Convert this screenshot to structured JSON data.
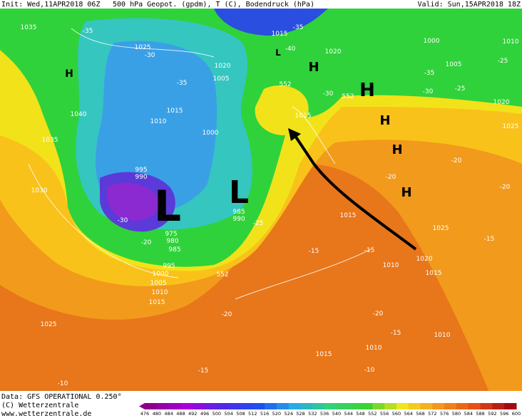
{
  "header": {
    "init": "Init: Wed,11APR2018 06Z",
    "title": "500 hPa Geopot. (gpdm), T (C), Bodendruck (hPa)",
    "valid": "Valid: Sun,15APR2018 18Z"
  },
  "footer": {
    "data": "Data: GFS OPERATIONAL 0.250°",
    "copyright": "(C) Wetterzentrale",
    "url": "www.wetterzentrale.de"
  },
  "colorbar": {
    "labels": [
      476,
      480,
      484,
      488,
      492,
      496,
      500,
      504,
      508,
      512,
      516,
      520,
      524,
      528,
      532,
      536,
      540,
      544,
      548,
      552,
      556,
      560,
      564,
      568,
      572,
      576,
      580,
      584,
      588,
      592,
      596,
      600
    ]
  },
  "map": {
    "highs": [
      "H",
      "H",
      "H",
      "H",
      "H",
      "H"
    ],
    "lows": [
      "L",
      "L",
      "L"
    ],
    "labels": [
      "1035",
      "1025",
      "1020",
      "1005",
      "1015",
      "1010",
      "1000",
      "1040",
      "1035",
      "1030",
      "995",
      "990",
      "985",
      "990",
      "975",
      "980",
      "985",
      "995",
      "1000",
      "1005",
      "1010",
      "1015",
      "1025",
      "1015",
      "1020",
      "1015",
      "1015",
      "1025",
      "1020",
      "1015",
      "1010",
      "1010",
      "1010",
      "1015",
      "1000",
      "1005",
      "1010",
      "1020",
      "1025",
      "-35",
      "-30",
      "-35",
      "-30",
      "-20",
      "-25",
      "-15",
      "-15",
      "-20",
      "-20",
      "-20",
      "-20",
      "-20",
      "-15",
      "-15",
      "-10",
      "-10",
      "-15",
      "-25",
      "-25",
      "-30",
      "-35",
      "-35",
      "-40",
      "-30",
      "552",
      "552",
      "552"
    ]
  }
}
